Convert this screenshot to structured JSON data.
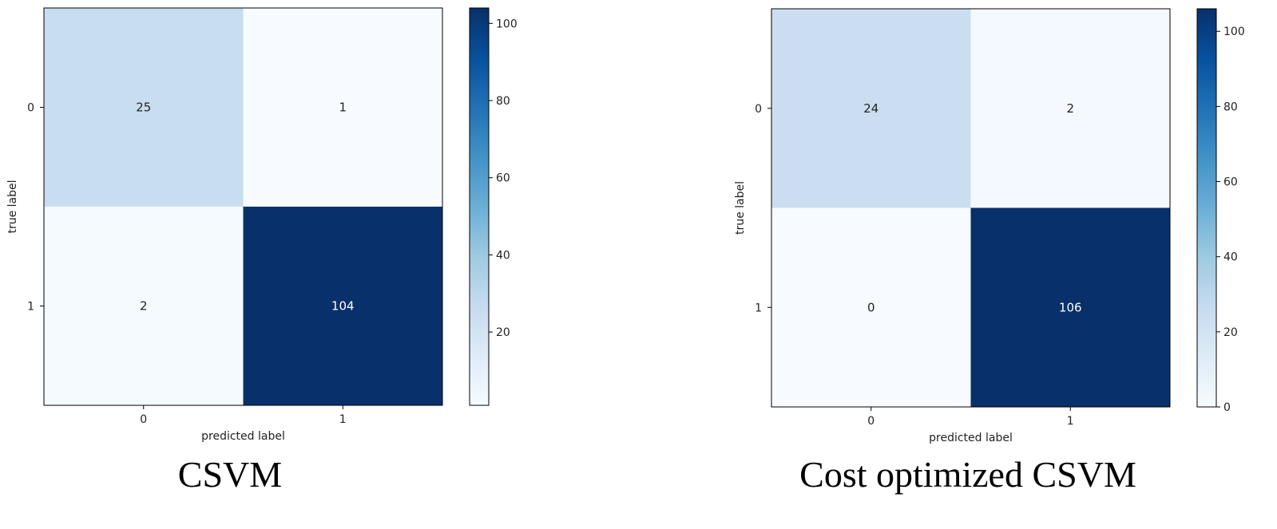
{
  "chart_data": [
    {
      "type": "heatmap",
      "caption": "CSVM",
      "xlabel": "predicted label",
      "ylabel": "true label",
      "x_tick_labels": [
        "0",
        "1"
      ],
      "y_tick_labels": [
        "0",
        "1"
      ],
      "matrix": [
        [
          25,
          1
        ],
        [
          2,
          104
        ]
      ],
      "colorbar": {
        "colormap": "Blues",
        "vmin": 1,
        "vmax": 104,
        "ticks": [
          20,
          40,
          60,
          80,
          100
        ]
      }
    },
    {
      "type": "heatmap",
      "caption": "Cost optimized CSVM",
      "xlabel": "predicted label",
      "ylabel": "true label",
      "x_tick_labels": [
        "0",
        "1"
      ],
      "y_tick_labels": [
        "0",
        "1"
      ],
      "matrix": [
        [
          24,
          2
        ],
        [
          0,
          106
        ]
      ],
      "colorbar": {
        "colormap": "Blues",
        "vmin": 0,
        "vmax": 106,
        "ticks": [
          0,
          20,
          40,
          60,
          80,
          100
        ]
      }
    }
  ]
}
